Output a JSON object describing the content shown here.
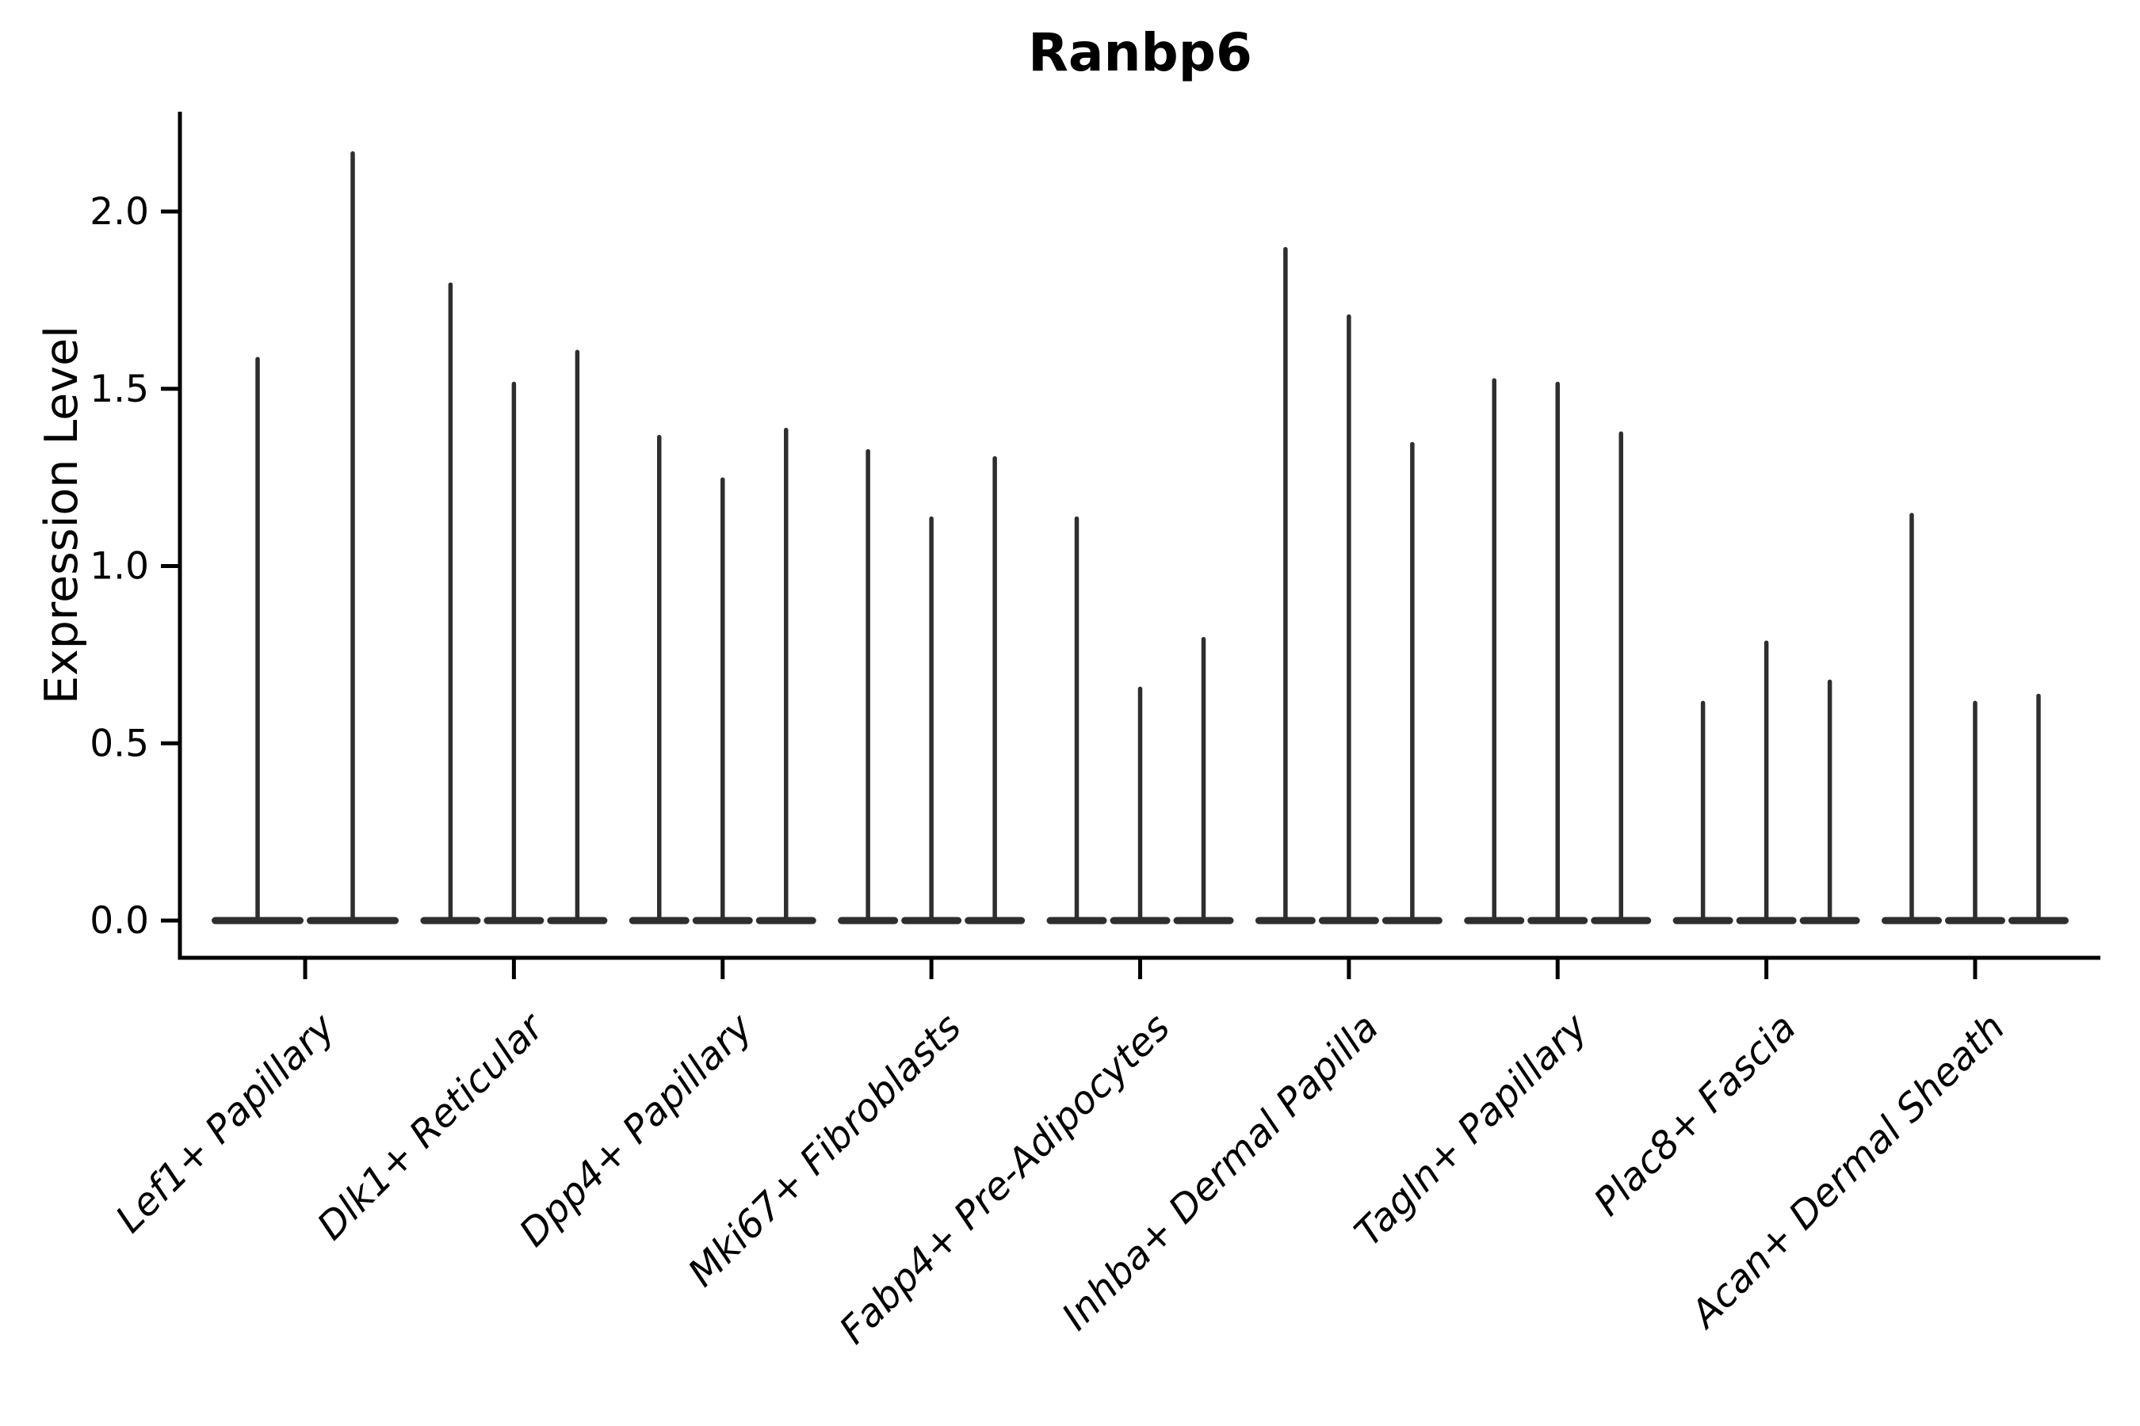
{
  "chart_data": {
    "type": "violin",
    "title": "Ranbp6",
    "ylabel": "Expression Level",
    "xlabel": "",
    "yticks": [
      "0.0",
      "0.5",
      "1.0",
      "1.5",
      "2.0"
    ],
    "ytick_values": [
      0.0,
      0.5,
      1.0,
      1.5,
      2.0
    ],
    "ylim": [
      -0.105,
      2.28
    ],
    "grid": "off",
    "legend": "none",
    "baseline_value": 0.0,
    "categories": [
      "Lef1+ Papillary",
      "Dlk1+ Reticular",
      "Dpp4+ Papillary",
      "Mki67+ Fibroblasts",
      "Fabp4+ Pre-Adipocytes",
      "Inhba+ Dermal Papilla",
      "Tagln+ Papillary",
      "Plac8+ Fascia",
      "Acan+ Dermal Sheath"
    ],
    "series": [
      {
        "category": "Lef1+ Papillary",
        "violin_max": [
          1.59,
          2.17
        ]
      },
      {
        "category": "Dlk1+ Reticular",
        "violin_max": [
          1.8,
          1.52,
          1.61
        ]
      },
      {
        "category": "Dpp4+ Papillary",
        "violin_max": [
          1.37,
          1.25,
          1.39
        ]
      },
      {
        "category": "Mki67+ Fibroblasts",
        "violin_max": [
          1.33,
          1.14,
          1.31
        ]
      },
      {
        "category": "Fabp4+ Pre-Adipocytes",
        "violin_max": [
          1.14,
          0.66,
          0.8
        ]
      },
      {
        "category": "Inhba+ Dermal Papilla",
        "violin_max": [
          1.9,
          1.71,
          1.35
        ]
      },
      {
        "category": "Tagln+ Papillary",
        "violin_max": [
          1.53,
          1.52,
          1.38
        ]
      },
      {
        "category": "Plac8+ Fascia",
        "violin_max": [
          0.62,
          0.79,
          0.68
        ]
      },
      {
        "category": "Acan+ Dermal Sheath",
        "violin_max": [
          1.15,
          0.62,
          0.64
        ]
      }
    ],
    "colors": {
      "violin": "#2e2e2e",
      "axis": "#000000",
      "text": "#000000",
      "background": "#ffffff"
    }
  }
}
